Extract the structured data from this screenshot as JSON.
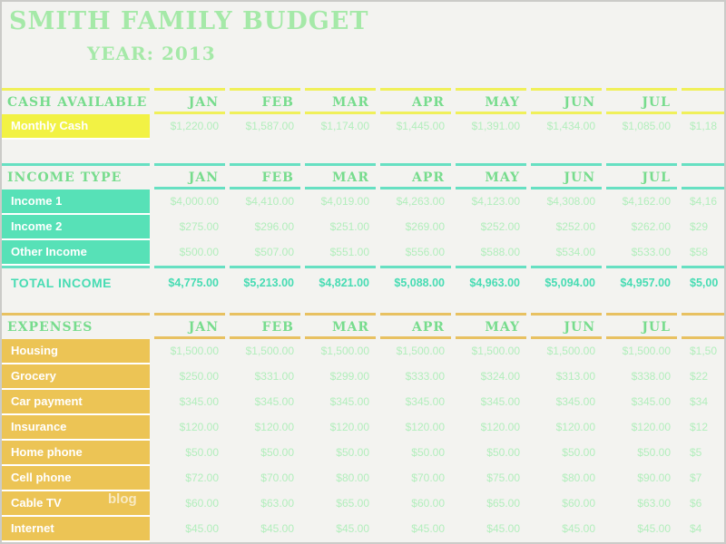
{
  "title": "SMITH FAMILY BUDGET",
  "year": {
    "label": "YEAR:",
    "value": "2013"
  },
  "watermark": "blog",
  "months": [
    "JAN",
    "FEB",
    "MAR",
    "APR",
    "MAY",
    "JUN",
    "JUL",
    ""
  ],
  "table": {
    "cash": {
      "header": "CASH AVAILABLE",
      "rows": [
        {
          "label": "Monthly Cash",
          "values": [
            "$1,220.00",
            "$1,587.00",
            "$1,174.00",
            "$1,445.00",
            "$1,391.00",
            "$1,434.00",
            "$1,085.00",
            "$1,18"
          ]
        }
      ]
    },
    "income": {
      "header": "INCOME TYPE",
      "rows": [
        {
          "label": "Income 1",
          "values": [
            "$4,000.00",
            "$4,410.00",
            "$4,019.00",
            "$4,263.00",
            "$4,123.00",
            "$4,308.00",
            "$4,162.00",
            "$4,16"
          ]
        },
        {
          "label": "Income 2",
          "values": [
            "$275.00",
            "$296.00",
            "$251.00",
            "$269.00",
            "$252.00",
            "$252.00",
            "$262.00",
            "$29"
          ]
        },
        {
          "label": "Other Income",
          "values": [
            "$500.00",
            "$507.00",
            "$551.00",
            "$556.00",
            "$588.00",
            "$534.00",
            "$533.00",
            "$58"
          ]
        }
      ],
      "total": {
        "label": "TOTAL INCOME",
        "values": [
          "$4,775.00",
          "$5,213.00",
          "$4,821.00",
          "$5,088.00",
          "$4,963.00",
          "$5,094.00",
          "$4,957.00",
          "$5,00"
        ]
      }
    },
    "expenses": {
      "header": "EXPENSES",
      "rows": [
        {
          "label": "Housing",
          "values": [
            "$1,500.00",
            "$1,500.00",
            "$1,500.00",
            "$1,500.00",
            "$1,500.00",
            "$1,500.00",
            "$1,500.00",
            "$1,50"
          ]
        },
        {
          "label": "Grocery",
          "values": [
            "$250.00",
            "$331.00",
            "$299.00",
            "$333.00",
            "$324.00",
            "$313.00",
            "$338.00",
            "$22"
          ]
        },
        {
          "label": "Car payment",
          "values": [
            "$345.00",
            "$345.00",
            "$345.00",
            "$345.00",
            "$345.00",
            "$345.00",
            "$345.00",
            "$34"
          ]
        },
        {
          "label": "Insurance",
          "values": [
            "$120.00",
            "$120.00",
            "$120.00",
            "$120.00",
            "$120.00",
            "$120.00",
            "$120.00",
            "$12"
          ]
        },
        {
          "label": "Home phone",
          "values": [
            "$50.00",
            "$50.00",
            "$50.00",
            "$50.00",
            "$50.00",
            "$50.00",
            "$50.00",
            "$5"
          ]
        },
        {
          "label": "Cell phone",
          "values": [
            "$72.00",
            "$70.00",
            "$80.00",
            "$70.00",
            "$75.00",
            "$80.00",
            "$90.00",
            "$7"
          ]
        },
        {
          "label": "Cable TV",
          "values": [
            "$60.00",
            "$63.00",
            "$65.00",
            "$60.00",
            "$65.00",
            "$60.00",
            "$63.00",
            "$6"
          ]
        },
        {
          "label": "Internet",
          "values": [
            "$45.00",
            "$45.00",
            "$45.00",
            "$45.00",
            "$45.00",
            "$45.00",
            "$45.00",
            "$4"
          ]
        }
      ]
    }
  },
  "colors": {
    "background": "#F3F3F0",
    "title_green": "#A5E9A8",
    "header_green": "#77DC8D",
    "value_green": "#B2EEBC",
    "cash_yellow": "#F2F244",
    "income_teal": "#57E1B7",
    "expense_orange": "#ECC455",
    "total_teal": "#47DCB3"
  }
}
